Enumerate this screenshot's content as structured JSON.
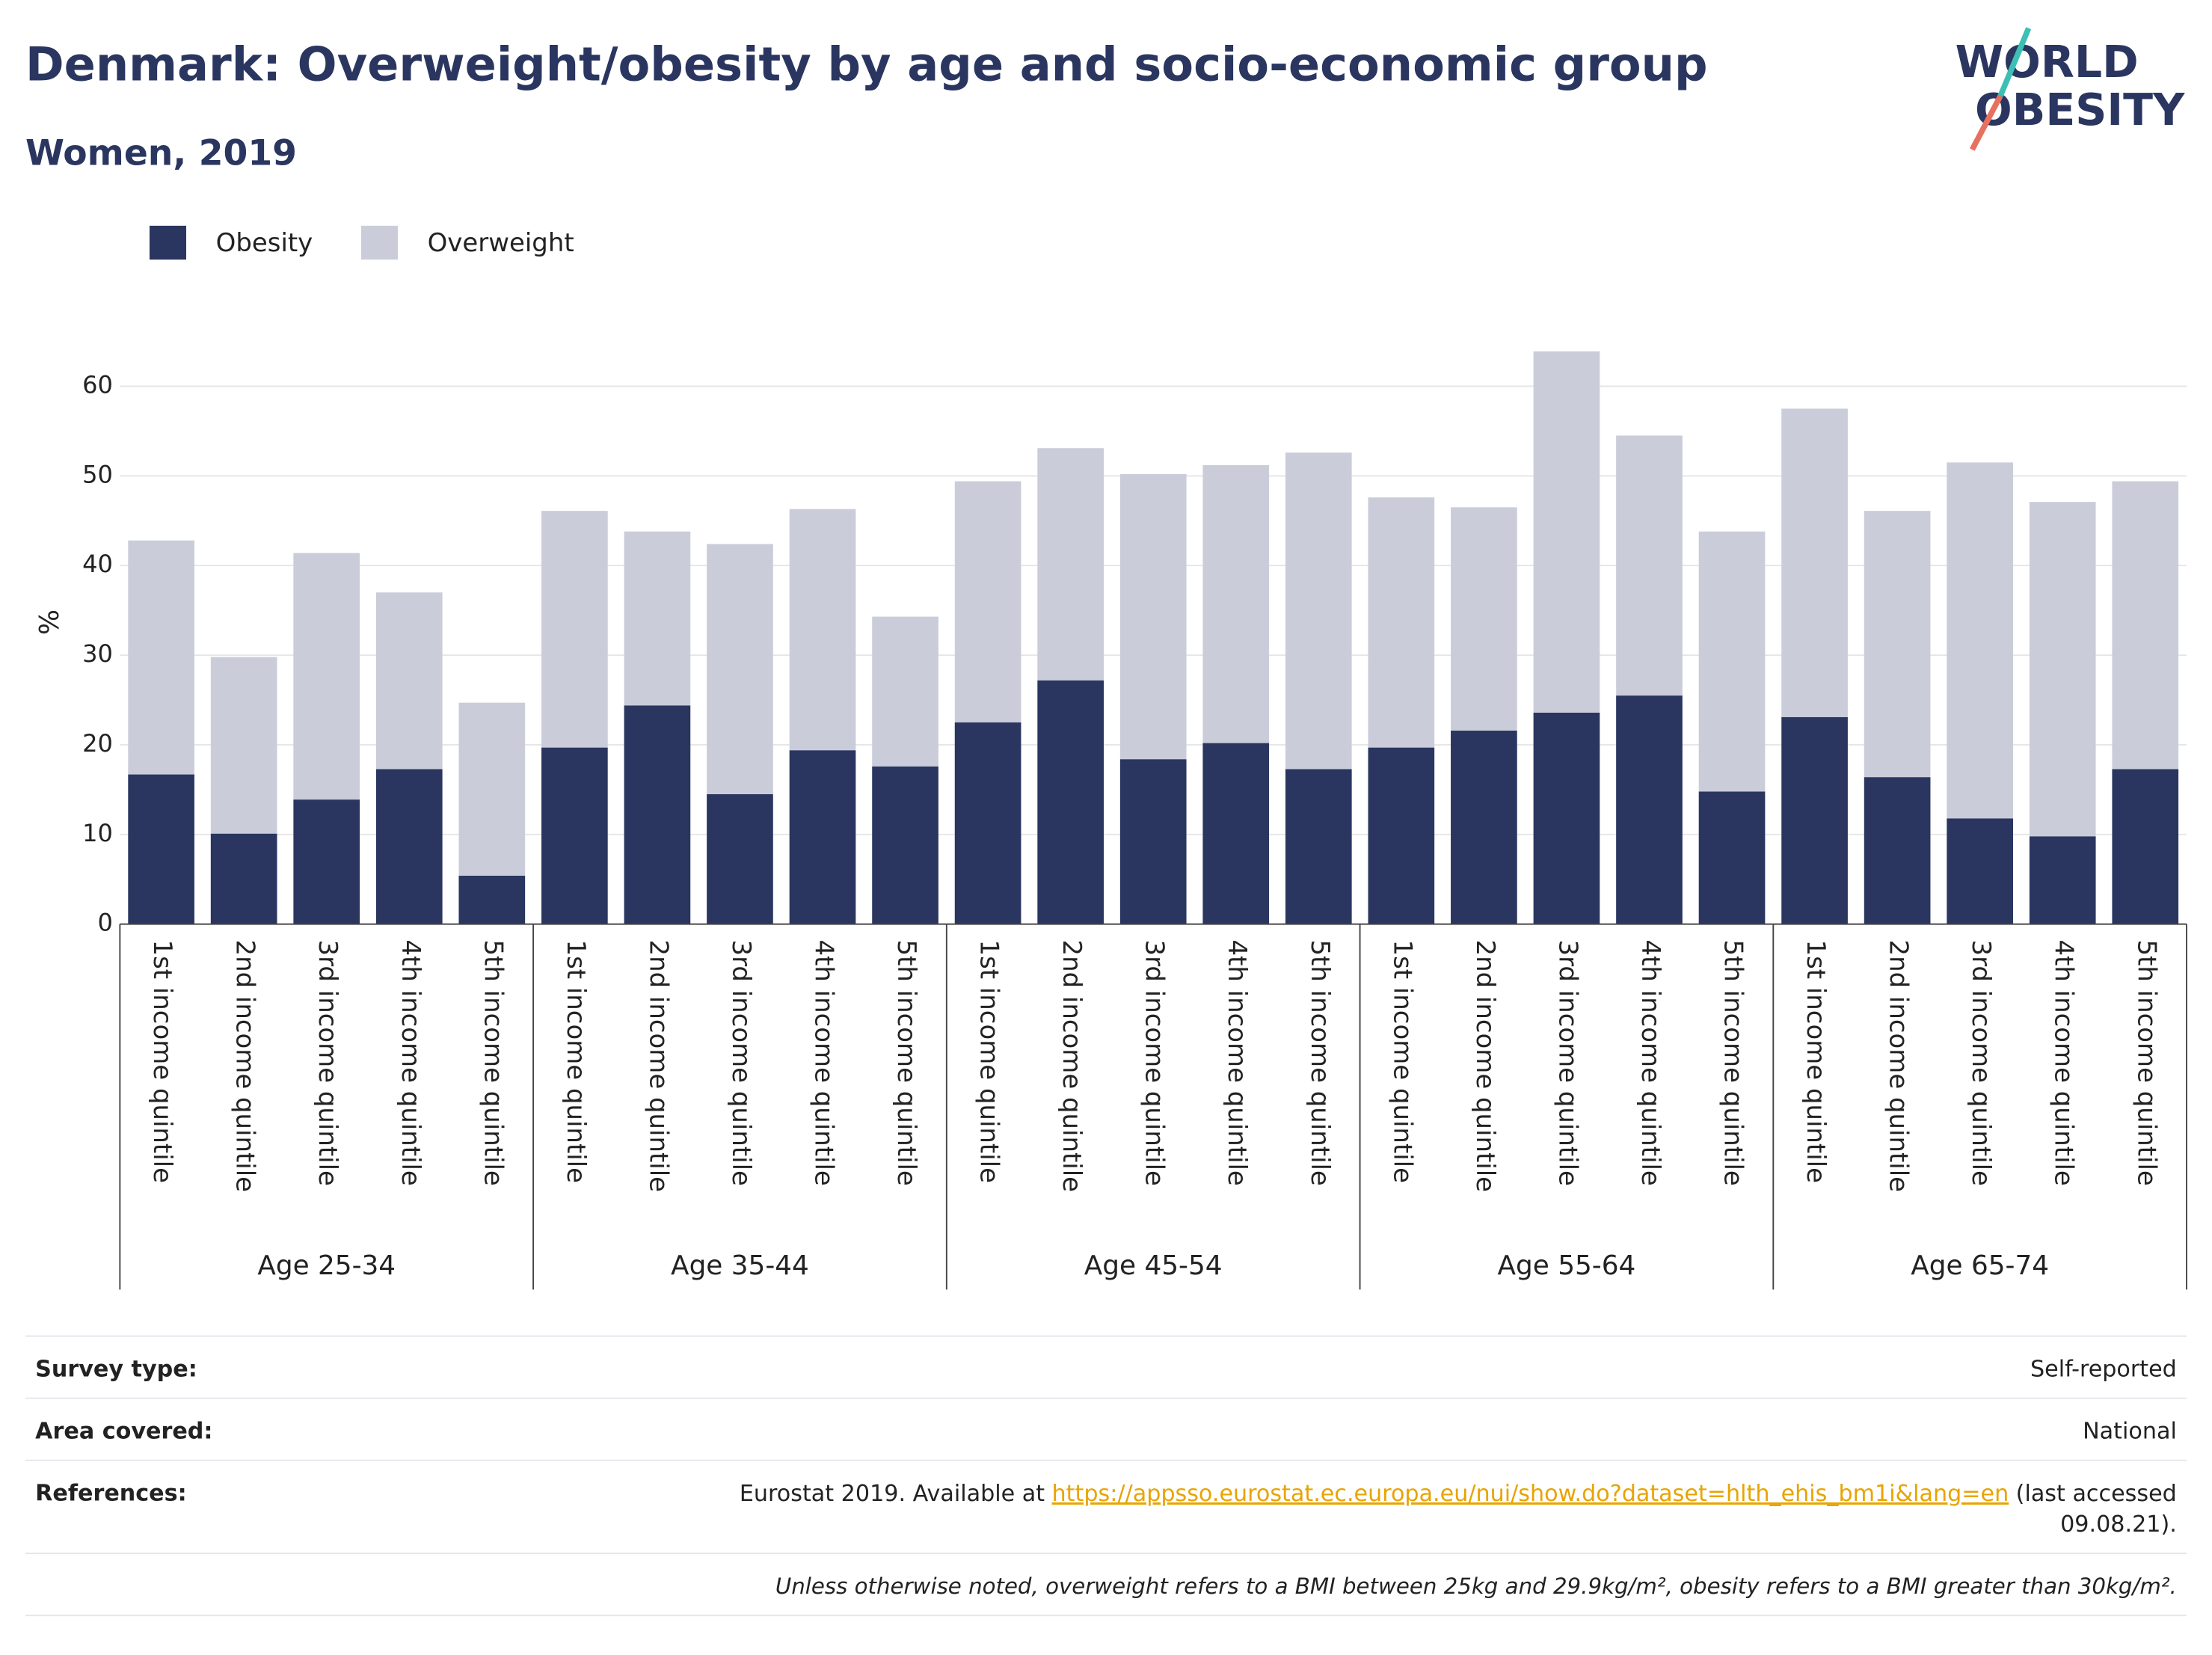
{
  "chart_data": {
    "type": "stacked_bar",
    "title": "Denmark: Overweight/obesity by age and socio-economic group",
    "subtitle": "Women, 2019",
    "y_label": "%",
    "groups": [
      "Age 25-34",
      "Age 35-44",
      "Age 45-54",
      "Age 55-64",
      "Age 65-74"
    ],
    "categories": [
      "1st income quintile",
      "2nd income quintile",
      "3rd income quintile",
      "4th income quintile",
      "5th income quintile",
      "1st income quintile",
      "2nd income quintile",
      "3rd income quintile",
      "4th income quintile",
      "5th income quintile",
      "1st income quintile",
      "2nd income quintile",
      "3rd income quintile",
      "4th income quintile",
      "5th income quintile",
      "1st income quintile",
      "2nd income quintile",
      "3rd income quintile",
      "4th income quintile",
      "5th income quintile",
      "1st income quintile",
      "2nd income quintile",
      "3rd income quintile",
      "4th income quintile",
      "5th income quintile"
    ],
    "series": [
      {
        "name": "Obesity",
        "color": "#2a3660",
        "values": [
          16.7,
          10.1,
          13.9,
          17.3,
          5.4,
          19.7,
          24.4,
          14.5,
          19.4,
          17.6,
          22.5,
          27.2,
          18.4,
          20.2,
          17.3,
          19.7,
          21.6,
          23.6,
          25.5,
          14.8,
          23.1,
          16.4,
          11.8,
          9.8,
          17.3
        ]
      },
      {
        "name": "Overweight",
        "color": "#cacdd9",
        "values": [
          26.1,
          19.7,
          27.5,
          19.7,
          19.3,
          26.4,
          19.4,
          27.9,
          26.9,
          16.7,
          26.9,
          25.9,
          31.8,
          31.0,
          35.3,
          27.9,
          24.9,
          40.3,
          29.0,
          29.0,
          34.4,
          29.7,
          39.7,
          37.3,
          32.1
        ]
      }
    ],
    "ylim": [
      0,
      65
    ],
    "yticks": [
      0,
      10,
      20,
      30,
      40,
      50,
      60
    ],
    "grid": true,
    "legend": "top-left"
  },
  "logo": [
    "WORLD",
    "OBESITY"
  ],
  "footer": {
    "rows": [
      {
        "label": "Survey type:",
        "value": "Self-reported"
      },
      {
        "label": "Area covered:",
        "value": "National"
      }
    ],
    "references": {
      "label": "References:",
      "text": "Eurostat 2019. Available at",
      "link": "https://appsso.eurostat.ec.europa.eu/nui/show.do?dataset=hlth_ehis_bm1i&lang=en",
      "after": [
        "(last accessed",
        "09.08.21)."
      ]
    },
    "note": "Unless otherwise noted, overweight refers to a BMI between 25kg and 29.9kg/m², obesity refers to a BMI greater than 30kg/m²."
  }
}
